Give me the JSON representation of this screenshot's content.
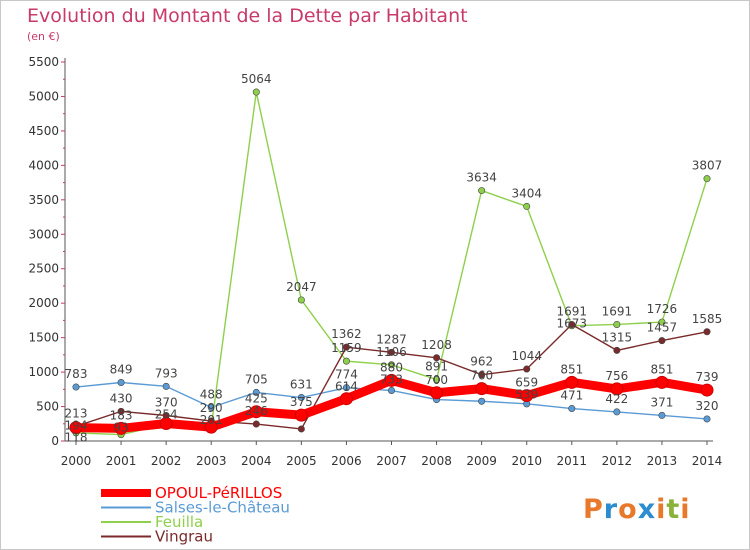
{
  "chart_data": {
    "type": "line",
    "title": "Evolution du Montant de la Dette par Habitant",
    "unit_label": "(en €)",
    "xlabel": "",
    "ylabel": "",
    "x": [
      "2000",
      "2001",
      "2002",
      "2003",
      "2004",
      "2005",
      "2006",
      "2007",
      "2008",
      "2009",
      "2010",
      "2011",
      "2012",
      "2013",
      "2014"
    ],
    "ylim": [
      0,
      5500
    ],
    "yticks": [
      0,
      500,
      1000,
      1500,
      2000,
      2500,
      3000,
      3500,
      4000,
      4500,
      5000,
      5500
    ],
    "grid": false,
    "legend_position": "bottom-left",
    "series": [
      {
        "name": "OPOUL-PéRILLOS",
        "color": "#ff0000",
        "values": [
          194,
          183,
          254,
          201,
          425,
          375,
          614,
          880,
          700,
          760,
          659,
          851,
          756,
          851,
          739
        ]
      },
      {
        "name": "Salses-le-Château",
        "color": "#5b9bd5",
        "values": [
          783,
          849,
          793,
          488,
          705,
          631,
          774,
          733,
          601,
          577,
          539,
          471,
          422,
          371,
          320
        ]
      },
      {
        "name": "Feuilla",
        "color": "#8ed04c",
        "values": [
          118,
          93,
          244,
          199,
          5064,
          2047,
          1159,
          1106,
          891,
          3634,
          3404,
          1673,
          1691,
          1726,
          3807
        ]
      },
      {
        "name": "Vingrau",
        "color": "#7a2a2a",
        "values": [
          213,
          430,
          370,
          290,
          246,
          175,
          1362,
          1287,
          1208,
          962,
          1044,
          1691,
          1315,
          1457,
          1585
        ]
      }
    ],
    "data_labels": [
      {
        "x": "2000",
        "text": "783"
      },
      {
        "x": "2000",
        "text": "213"
      },
      {
        "x": "2000",
        "text": "194"
      },
      {
        "x": "2000",
        "text": "118"
      },
      {
        "x": "2001",
        "text": "849"
      },
      {
        "x": "2001",
        "text": "430"
      },
      {
        "x": "2001",
        "text": "183"
      },
      {
        "x": "2001",
        "text": "93"
      },
      {
        "x": "2002",
        "text": "793"
      },
      {
        "x": "2002",
        "text": "370"
      },
      {
        "x": "2002",
        "text": "254"
      },
      {
        "x": "2003",
        "text": "488"
      },
      {
        "x": "2003",
        "text": "290"
      },
      {
        "x": "2003",
        "text": "201"
      },
      {
        "x": "2004",
        "text": "5064"
      },
      {
        "x": "2004",
        "text": "705"
      },
      {
        "x": "2004",
        "text": "425"
      },
      {
        "x": "2004",
        "text": "246"
      },
      {
        "x": "2005",
        "text": "2047"
      },
      {
        "x": "2005",
        "text": "631"
      },
      {
        "x": "2005",
        "text": "375"
      },
      {
        "x": "2006",
        "text": "1362"
      },
      {
        "x": "2006",
        "text": "1159"
      },
      {
        "x": "2006",
        "text": "774"
      },
      {
        "x": "2006",
        "text": "614"
      },
      {
        "x": "2007",
        "text": "1287"
      },
      {
        "x": "2007",
        "text": "1106"
      },
      {
        "x": "2007",
        "text": "880"
      },
      {
        "x": "2007",
        "text": "733"
      },
      {
        "x": "2008",
        "text": "1208"
      },
      {
        "x": "2008",
        "text": "891"
      },
      {
        "x": "2008",
        "text": "700"
      },
      {
        "x": "2009",
        "text": "3634"
      },
      {
        "x": "2009",
        "text": "962"
      },
      {
        "x": "2009",
        "text": "760"
      },
      {
        "x": "2010",
        "text": "3404"
      },
      {
        "x": "2010",
        "text": "1044"
      },
      {
        "x": "2010",
        "text": "659"
      },
      {
        "x": "2010",
        "text": "539"
      },
      {
        "x": "2011",
        "text": "1691"
      },
      {
        "x": "2011",
        "text": "1673"
      },
      {
        "x": "2011",
        "text": "851"
      },
      {
        "x": "2011",
        "text": "471"
      },
      {
        "x": "2012",
        "text": "1691"
      },
      {
        "x": "2012",
        "text": "1315"
      },
      {
        "x": "2012",
        "text": "756"
      },
      {
        "x": "2012",
        "text": "422"
      },
      {
        "x": "2013",
        "text": "1726"
      },
      {
        "x": "2013",
        "text": "1457"
      },
      {
        "x": "2013",
        "text": "851"
      },
      {
        "x": "2013",
        "text": "371"
      },
      {
        "x": "2014",
        "text": "3807"
      },
      {
        "x": "2014",
        "text": "1585"
      },
      {
        "x": "2014",
        "text": "739"
      },
      {
        "x": "2014",
        "text": "320"
      }
    ]
  },
  "logo": {
    "text": "Proxiti",
    "colors": [
      "#e8792b",
      "#2b8ccf",
      "#e8792b",
      "#2b8ccf",
      "#e8792b",
      "#8ab23a",
      "#e8792b"
    ]
  }
}
